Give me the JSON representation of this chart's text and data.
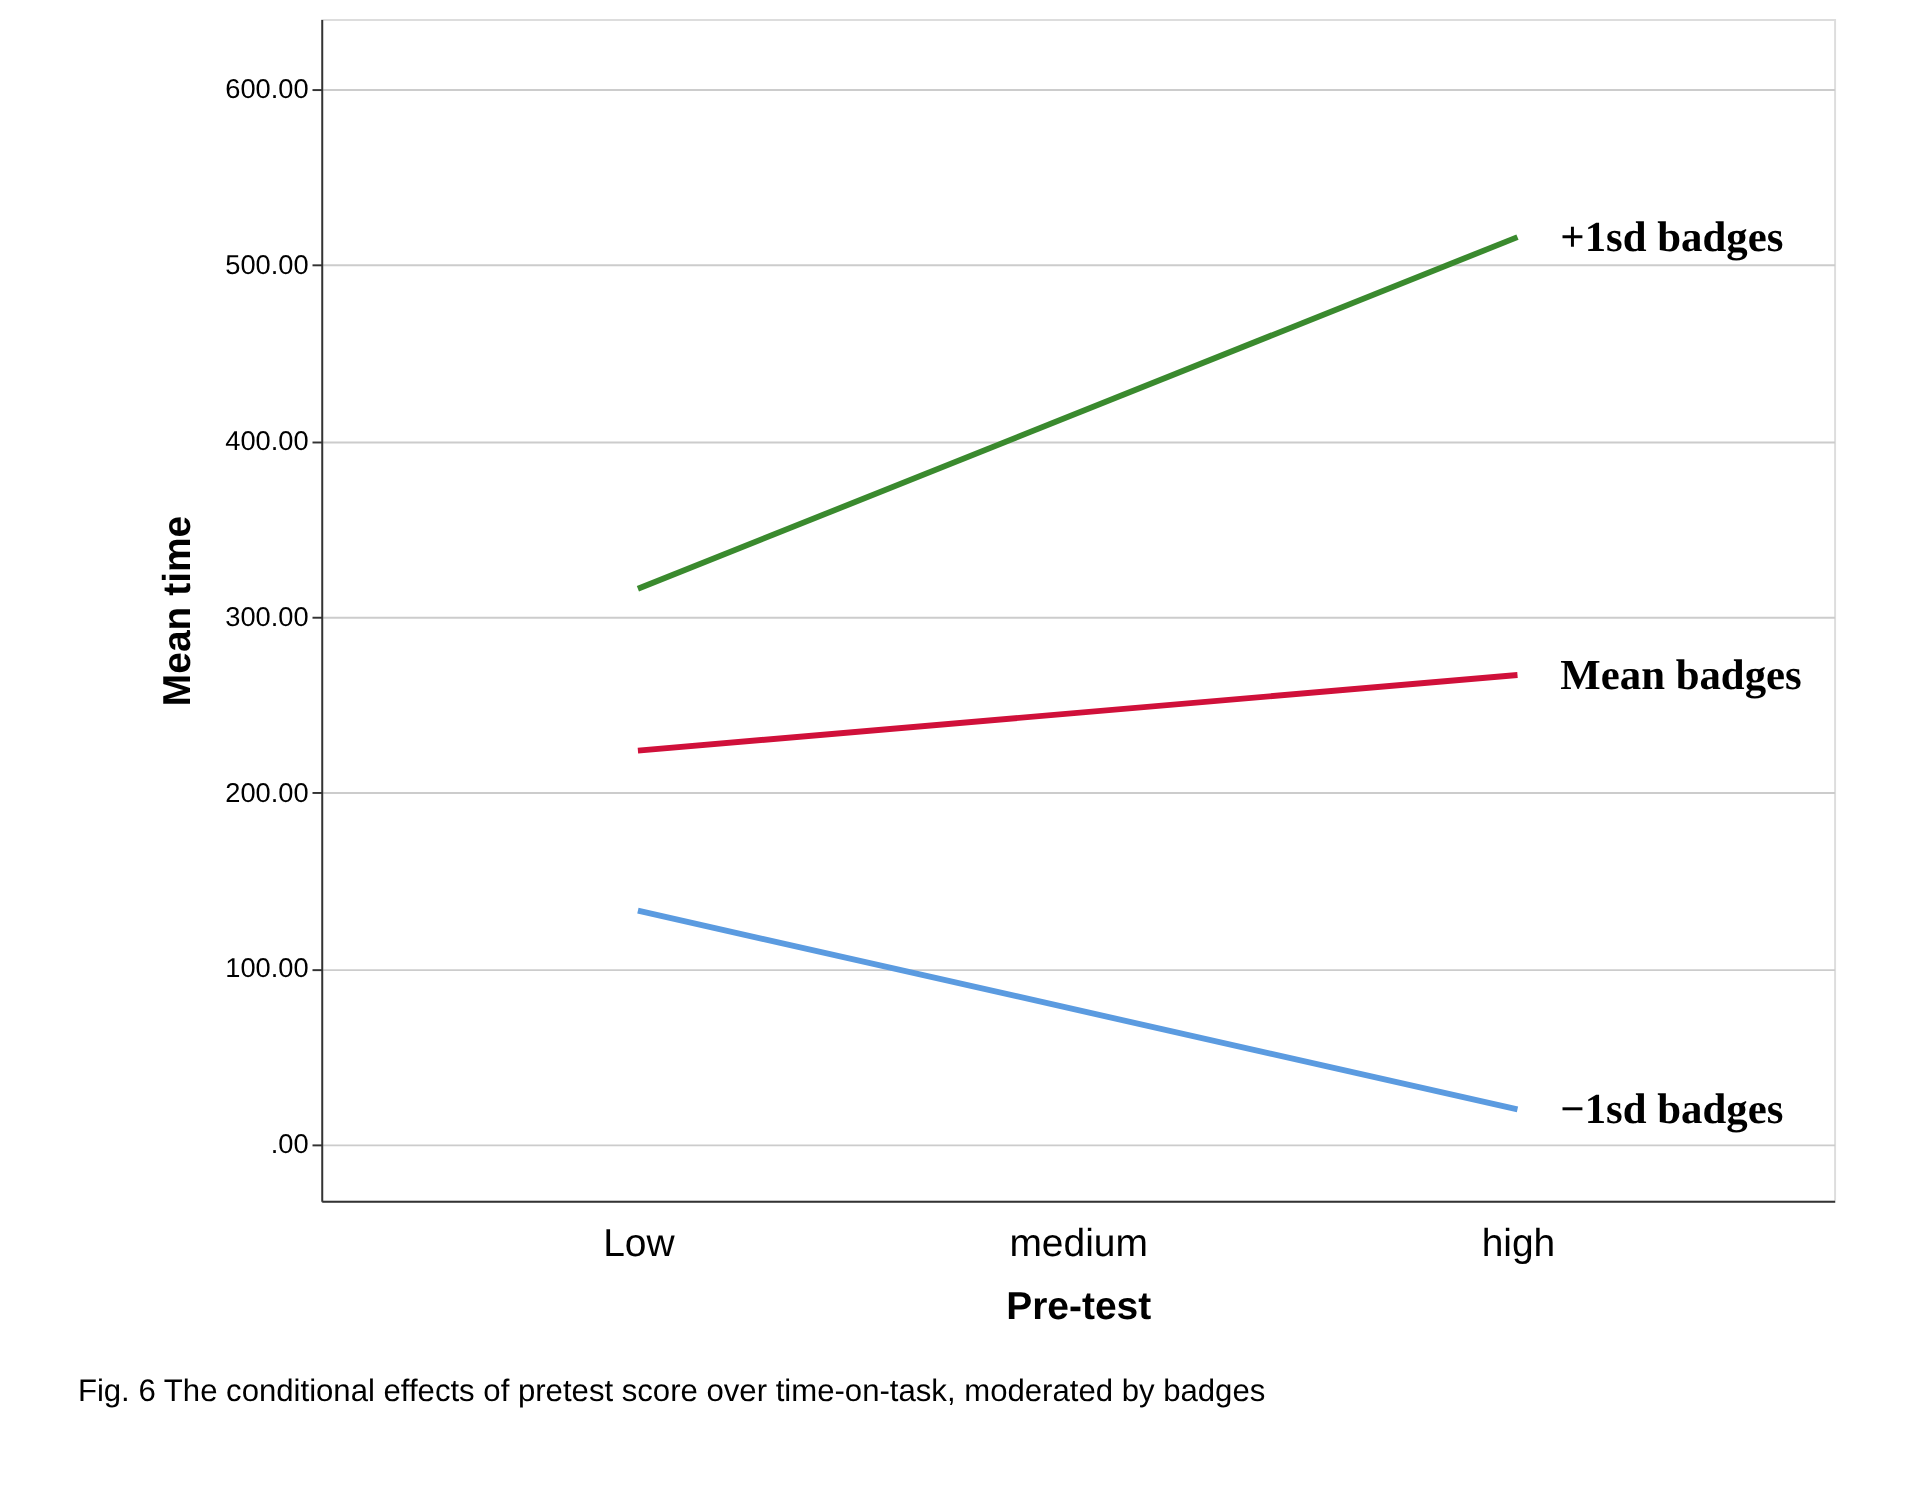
{
  "chart_data": {
    "type": "line",
    "xlabel": "Pre-test",
    "ylabel": "Mean time",
    "categories": [
      "Low",
      "medium",
      "high"
    ],
    "series": [
      {
        "name": "+1sd badges",
        "color": "#3a8a2e",
        "values": [
          316,
          null,
          516
        ]
      },
      {
        "name": "Mean badges",
        "color": "#d0103a",
        "values": [
          224,
          null,
          267
        ]
      },
      {
        "name": "−1sd badges",
        "color": "#5b9be0",
        "values": [
          133,
          null,
          20
        ]
      }
    ],
    "ylim": [
      -32,
      640
    ],
    "yticks": [
      {
        "value": 0,
        "label": ".00"
      },
      {
        "value": 100,
        "label": "100.00"
      },
      {
        "value": 200,
        "label": "200.00"
      },
      {
        "value": 300,
        "label": "300.00"
      },
      {
        "value": 400,
        "label": "400.00"
      },
      {
        "value": 500,
        "label": "500.00"
      },
      {
        "value": 600,
        "label": "600.00"
      }
    ],
    "grid": "y",
    "legend": false,
    "marker": "none",
    "line_style": "solid",
    "annotations": [
      "Fig. 6  The conditional effects of pretest score over time-on-task, moderated by badges"
    ]
  }
}
